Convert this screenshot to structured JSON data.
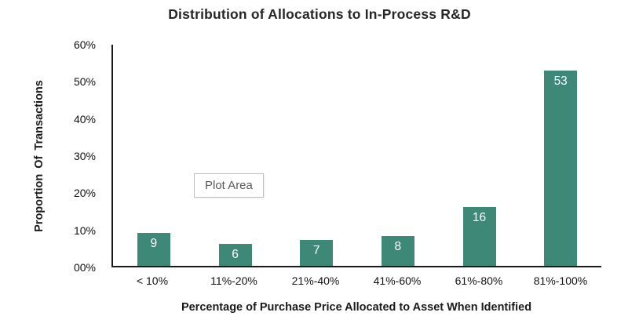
{
  "title": "Distribution of Allocations to In-Process R&D",
  "plot_area_tooltip": "Plot Area",
  "colors": {
    "bar": "#3E8878",
    "bar_label": "#FFFFFF",
    "axis_line": "#1A1A1A",
    "title_text": "#262626",
    "tooltip_text": "#595959",
    "tooltip_border": "#BFBFBF",
    "background": "#FFFFFF"
  },
  "chart_data": {
    "type": "bar",
    "title": "Distribution of Allocations to In-Process R&D",
    "categories": [
      "< 10%",
      "11%-20%",
      "21%-40%",
      "41%-60%",
      "61%-80%",
      "81%-100%"
    ],
    "values": [
      9,
      6,
      7,
      8,
      16,
      53
    ],
    "bar_labels": [
      "9",
      "6",
      "7",
      "8",
      "16",
      "53"
    ],
    "xlabel": "Percentage of Purchase Price Allocated to Asset When Identified",
    "ylabel": "Proportion Of Transactions",
    "ylim": [
      0,
      60
    ],
    "y_ticks_top_down": [
      "60%",
      "50%",
      "40%",
      "30%",
      "20%",
      "10%",
      "00%"
    ],
    "grid": false,
    "legend": false,
    "bar_color": "#3E8878"
  }
}
